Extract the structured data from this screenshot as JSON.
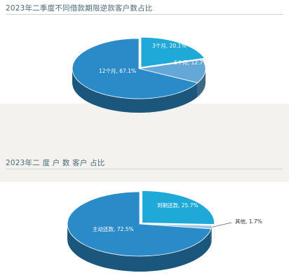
{
  "chart_data": [
    {
      "type": "pie",
      "title": "2023年二季度不同借款期限逆款客户数占比",
      "slices": [
        {
          "label": "3个月",
          "value": 20.1,
          "text": "3个月, 20.1%",
          "color": "#1fa9d9"
        },
        {
          "label": "6个月",
          "value": 12.7,
          "text": "6个月, 12.7%",
          "color": "#65a7d6"
        },
        {
          "label": "12个月",
          "value": 67.1,
          "text": "12个月, 67.1%",
          "color": "#2b8ac8"
        }
      ]
    },
    {
      "type": "pie",
      "title": "2023年二    度    户   数    客户   占比",
      "slices": [
        {
          "label": "到期还款",
          "value": 25.7,
          "text": "到期还款, 25.7%",
          "color": "#1fa9d9"
        },
        {
          "label": "其他",
          "value": 1.7,
          "text": "其他, 1.7%",
          "color": "#9ac8e6"
        },
        {
          "label": "主动还款",
          "value": 72.5,
          "text": "主动还款, 72.5%",
          "color": "#2b8ac8"
        }
      ]
    }
  ]
}
